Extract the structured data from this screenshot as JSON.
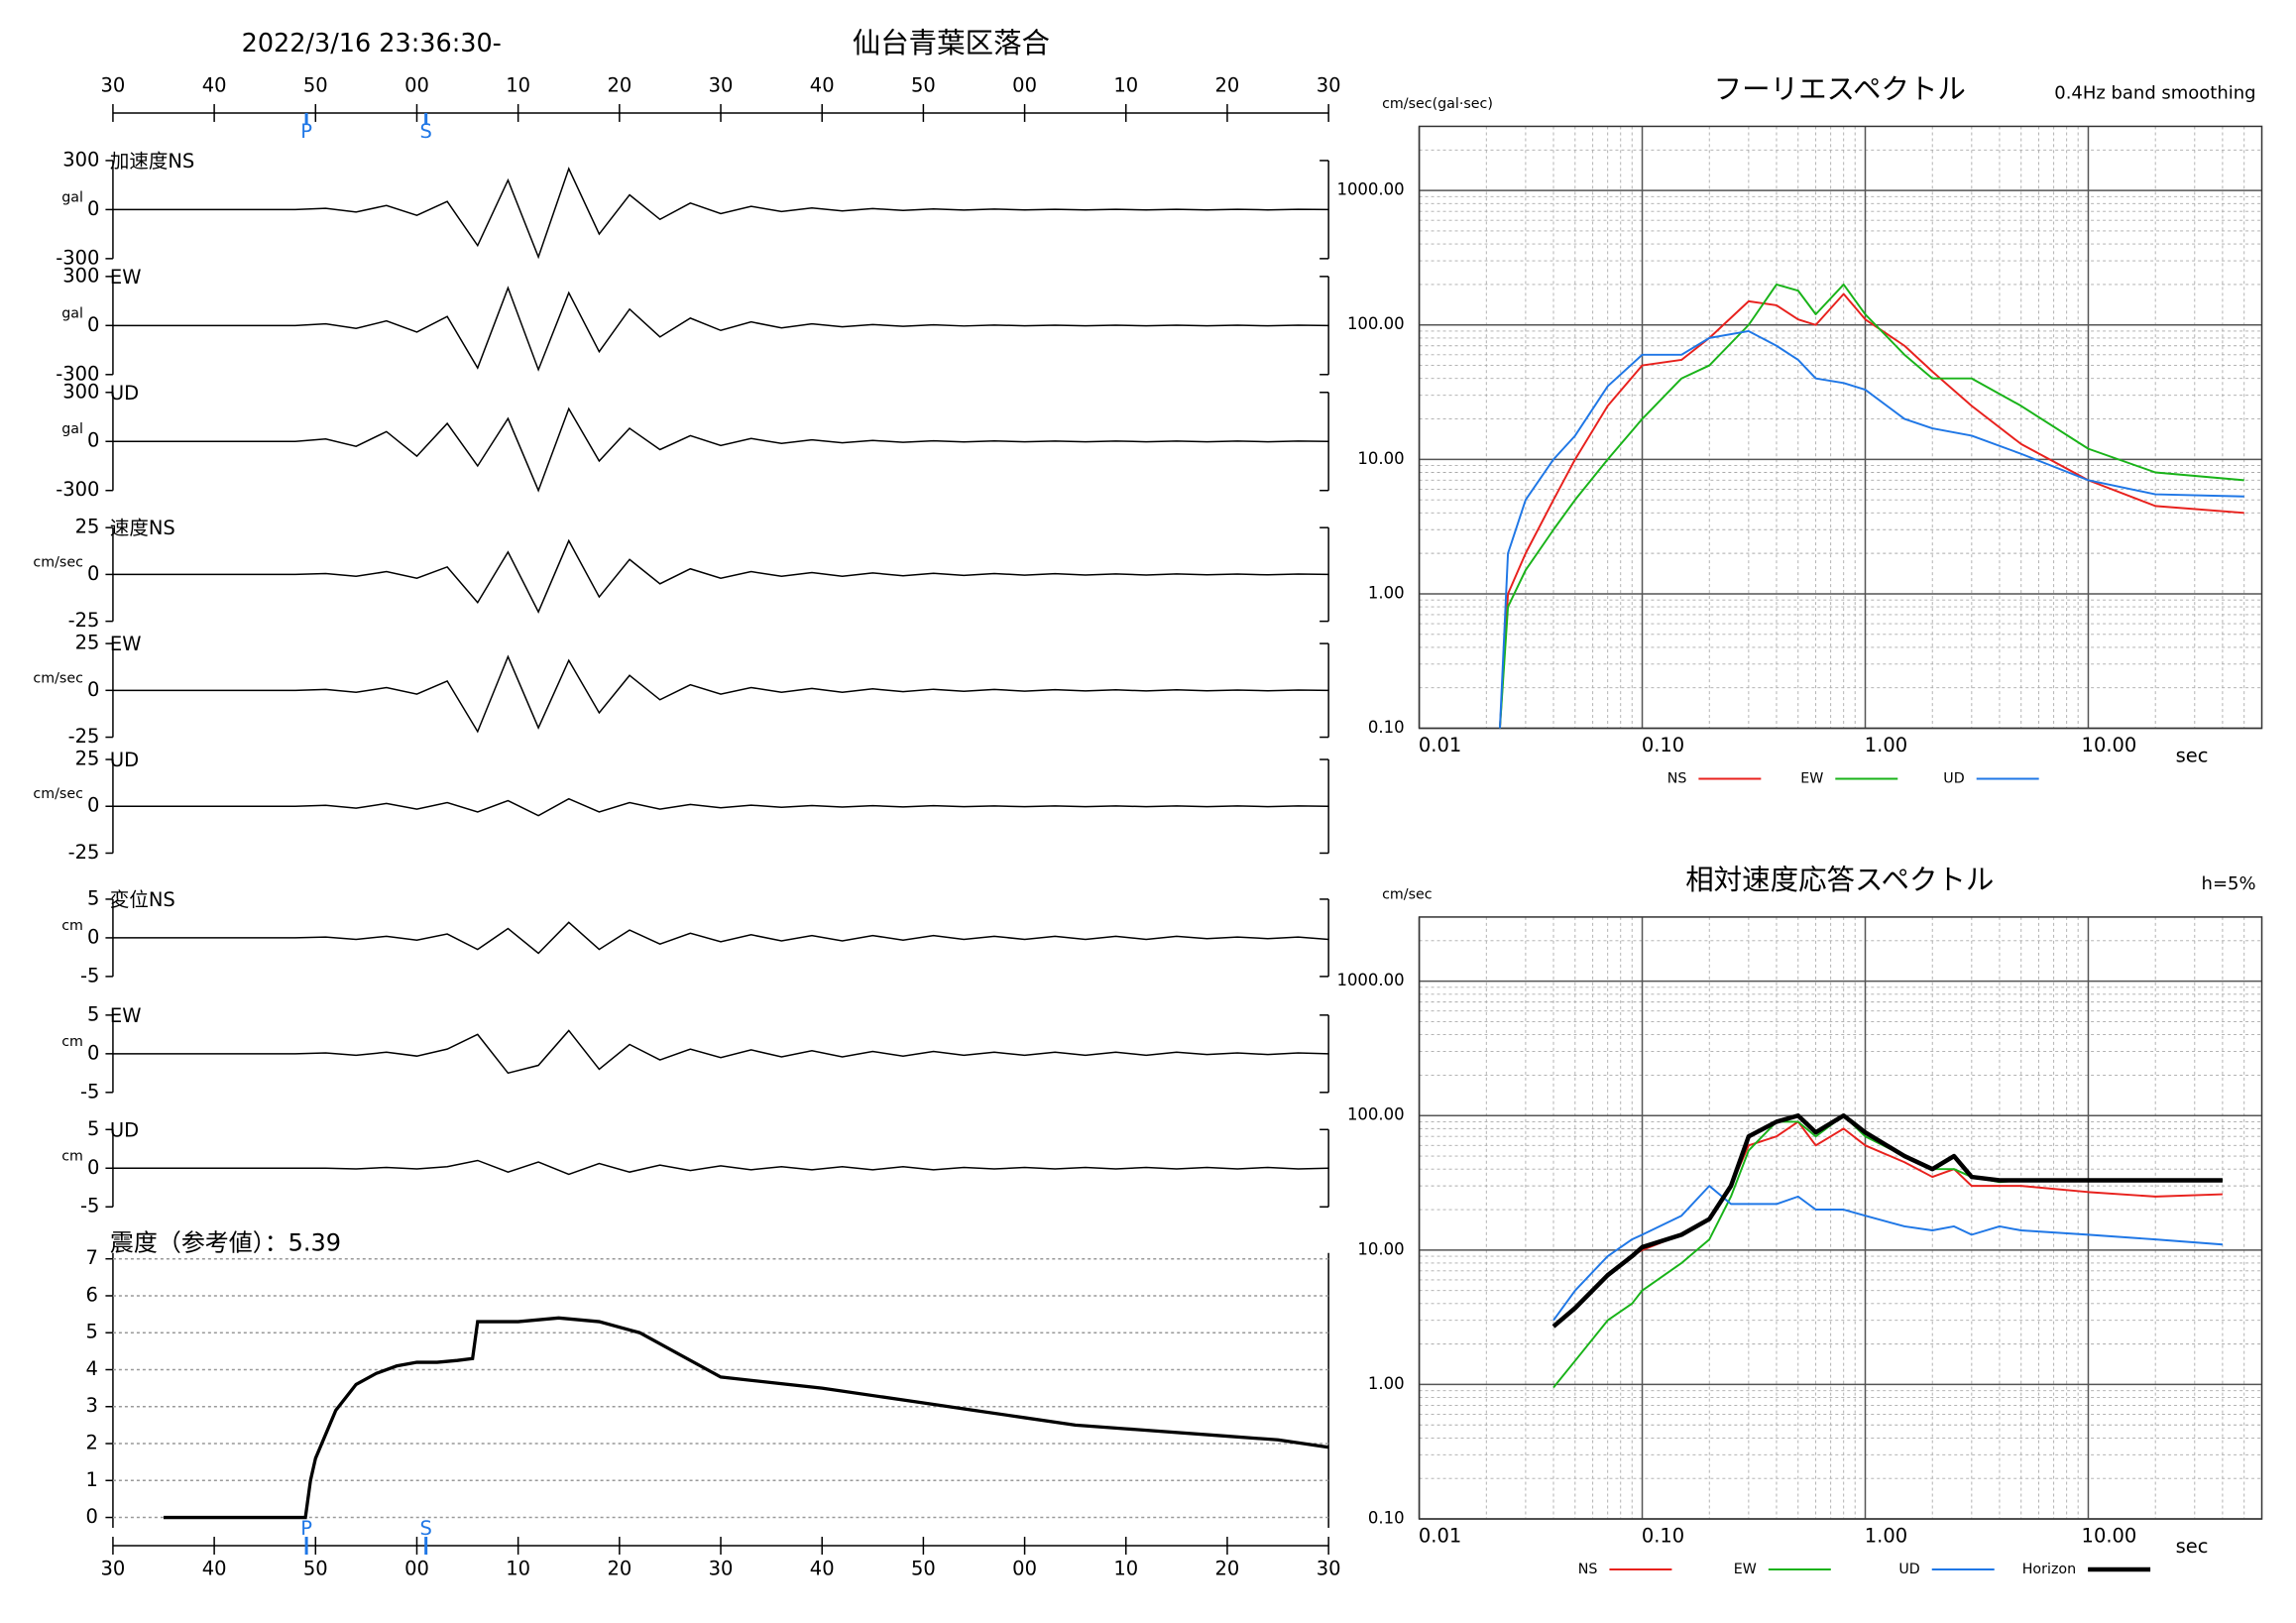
{
  "header": {
    "datetime": "2022/3/16 23:36:30-",
    "station": "仙台青葉区落合"
  },
  "chart_data": [
    {
      "type": "waveform",
      "xlim": [
        0,
        120
      ],
      "xticks": [
        {
          "value": 0,
          "label": "30"
        },
        {
          "value": 10,
          "label": "40"
        },
        {
          "value": 20,
          "label": "50"
        },
        {
          "value": 30,
          "label": "00"
        },
        {
          "value": 40,
          "label": "10"
        },
        {
          "value": 50,
          "label": "20"
        },
        {
          "value": 60,
          "label": "30"
        },
        {
          "value": 70,
          "label": "40"
        },
        {
          "value": 80,
          "label": "50"
        },
        {
          "value": 90,
          "label": "00"
        },
        {
          "value": 100,
          "label": "10"
        },
        {
          "value": 110,
          "label": "20"
        },
        {
          "value": 120,
          "label": "30"
        }
      ],
      "markers": [
        {
          "label": "P",
          "value": 19.1
        },
        {
          "label": "S",
          "value": 30.9
        }
      ],
      "marker_color": "#1f77e6",
      "x": [
        0,
        3,
        6,
        9,
        12,
        15,
        18,
        21,
        24,
        27,
        30,
        33,
        36,
        39,
        42,
        45,
        48,
        51,
        54,
        57,
        60,
        63,
        66,
        69,
        72,
        75,
        78,
        81,
        84,
        87,
        90,
        93,
        96,
        99,
        102,
        105,
        108,
        111,
        114,
        117,
        120
      ],
      "series": [
        {
          "name": "加速度NS",
          "unit": "gal",
          "color": "#000000",
          "ylim": [
            -300,
            300
          ],
          "yticks": [
            300,
            0,
            -300
          ],
          "values": [
            0,
            0,
            0,
            0,
            0,
            0,
            0,
            8,
            -15,
            25,
            -35,
            50,
            -220,
            180,
            -290,
            250,
            -150,
            90,
            -60,
            40,
            -25,
            20,
            -12,
            10,
            -8,
            6,
            -5,
            4,
            -3,
            3,
            -2,
            2,
            -2,
            2,
            -2,
            2,
            -2,
            2,
            -2,
            2,
            0
          ]
        },
        {
          "name": "EW",
          "unit": "gal",
          "color": "#000000",
          "ylim": [
            -300,
            300
          ],
          "yticks": [
            300,
            0,
            -300
          ],
          "values": [
            0,
            0,
            0,
            0,
            0,
            0,
            0,
            10,
            -18,
            28,
            -40,
            55,
            -260,
            230,
            -270,
            200,
            -160,
            100,
            -70,
            45,
            -30,
            22,
            -15,
            10,
            -8,
            6,
            -5,
            4,
            -3,
            3,
            -2,
            2,
            -2,
            2,
            -2,
            2,
            -2,
            2,
            -2,
            2,
            0
          ]
        },
        {
          "name": "UD",
          "unit": "gal",
          "color": "#000000",
          "ylim": [
            -300,
            300
          ],
          "yticks": [
            300,
            0,
            -300
          ],
          "values": [
            0,
            0,
            0,
            0,
            0,
            0,
            0,
            15,
            -30,
            60,
            -90,
            110,
            -150,
            140,
            -300,
            200,
            -120,
            80,
            -50,
            35,
            -25,
            18,
            -12,
            10,
            -8,
            6,
            -5,
            4,
            -3,
            3,
            -2,
            2,
            -2,
            2,
            -2,
            2,
            -2,
            2,
            -2,
            2,
            0
          ]
        },
        {
          "name": "速度NS",
          "unit": "cm/sec",
          "color": "#000000",
          "ylim": [
            -25,
            25
          ],
          "yticks": [
            25,
            0,
            -25
          ],
          "values": [
            0,
            0,
            0,
            0,
            0,
            0,
            0,
            0.5,
            -1,
            1.5,
            -2,
            4,
            -15,
            12,
            -20,
            18,
            -12,
            8,
            -5,
            3,
            -2,
            1.5,
            -1,
            1,
            -1,
            0.8,
            -0.7,
            0.6,
            -0.5,
            0.5,
            -0.4,
            0.4,
            -0.3,
            0.3,
            -0.3,
            0.3,
            -0.2,
            0.2,
            -0.2,
            0.2,
            0
          ]
        },
        {
          "name": "EW",
          "unit": "cm/sec",
          "color": "#000000",
          "ylim": [
            -25,
            25
          ],
          "yticks": [
            25,
            0,
            -25
          ],
          "values": [
            0,
            0,
            0,
            0,
            0,
            0,
            0,
            0.5,
            -1,
            1.5,
            -2,
            5,
            -22,
            18,
            -20,
            16,
            -12,
            8,
            -5,
            3,
            -2,
            1.5,
            -1,
            1,
            -1,
            0.8,
            -0.7,
            0.6,
            -0.5,
            0.5,
            -0.4,
            0.4,
            -0.3,
            0.3,
            -0.3,
            0.3,
            -0.2,
            0.2,
            -0.2,
            0.2,
            0
          ]
        },
        {
          "name": "UD",
          "unit": "cm/sec",
          "color": "#000000",
          "ylim": [
            -25,
            25
          ],
          "yticks": [
            25,
            0,
            -25
          ],
          "values": [
            0,
            0,
            0,
            0,
            0,
            0,
            0,
            0.5,
            -1,
            1.5,
            -1.5,
            2,
            -3,
            3,
            -5,
            4,
            -3,
            2,
            -1.5,
            1,
            -0.8,
            0.6,
            -0.5,
            0.4,
            -0.4,
            0.3,
            -0.3,
            0.3,
            -0.2,
            0.2,
            -0.2,
            0.2,
            -0.2,
            0.2,
            -0.2,
            0.2,
            -0.2,
            0.2,
            -0.2,
            0.2,
            0
          ]
        },
        {
          "name": "変位NS",
          "unit": "cm",
          "color": "#000000",
          "ylim": [
            -5,
            5
          ],
          "yticks": [
            5,
            0,
            -5
          ],
          "values": [
            0,
            0,
            0,
            0,
            0,
            0,
            0,
            0.1,
            -0.2,
            0.2,
            -0.3,
            0.5,
            -1.5,
            1.2,
            -2,
            2,
            -1.5,
            1,
            -0.8,
            0.6,
            -0.5,
            0.4,
            -0.4,
            0.3,
            -0.4,
            0.3,
            -0.3,
            0.3,
            -0.2,
            0.2,
            -0.2,
            0.2,
            -0.2,
            0.2,
            -0.2,
            0.2,
            -0.1,
            0.1,
            -0.1,
            0.1,
            -0.2
          ]
        },
        {
          "name": "EW",
          "unit": "cm",
          "color": "#000000",
          "ylim": [
            -5,
            5
          ],
          "yticks": [
            5,
            0,
            -5
          ],
          "values": [
            0,
            0,
            0,
            0,
            0,
            0,
            0,
            0.1,
            -0.2,
            0.2,
            -0.3,
            0.6,
            2.5,
            -2.5,
            -1.5,
            3,
            -2,
            1.2,
            -0.8,
            0.6,
            -0.5,
            0.5,
            -0.4,
            0.4,
            -0.4,
            0.3,
            -0.3,
            0.3,
            -0.2,
            0.2,
            -0.2,
            0.2,
            -0.2,
            0.2,
            -0.2,
            0.2,
            -0.1,
            0.1,
            -0.1,
            0.1,
            0
          ]
        },
        {
          "name": "UD",
          "unit": "cm",
          "color": "#000000",
          "ylim": [
            -5,
            5
          ],
          "yticks": [
            5,
            0,
            -5
          ],
          "values": [
            0,
            0,
            0,
            0,
            0,
            0,
            0,
            0,
            -0.1,
            0.1,
            -0.1,
            0.2,
            1,
            -0.5,
            0.8,
            -0.8,
            0.6,
            -0.5,
            0.4,
            -0.3,
            0.3,
            -0.2,
            0.2,
            -0.2,
            0.2,
            -0.2,
            0.2,
            -0.2,
            0.1,
            -0.1,
            0.1,
            -0.1,
            0.1,
            -0.1,
            0.1,
            -0.1,
            0.1,
            -0.1,
            0.1,
            -0.1,
            0
          ]
        }
      ]
    },
    {
      "type": "line",
      "title": "震度（参考値）：5.39",
      "color": "#000000",
      "grid": true,
      "ylim": [
        0,
        7
      ],
      "yticks": [
        0,
        1,
        2,
        3,
        4,
        5,
        6,
        7
      ],
      "x": [
        5,
        19,
        19.5,
        20,
        22,
        24,
        26,
        28,
        30,
        32,
        34,
        35.5,
        36,
        40,
        44,
        48,
        52,
        56,
        60,
        70,
        80,
        85,
        90,
        95,
        100,
        110,
        115,
        120
      ],
      "values": [
        0,
        0,
        1,
        1.6,
        2.9,
        3.6,
        3.9,
        4.1,
        4.2,
        4.2,
        4.25,
        4.3,
        5.3,
        5.3,
        5.4,
        5.3,
        5.0,
        4.4,
        3.8,
        3.5,
        3.1,
        2.9,
        2.7,
        2.5,
        2.4,
        2.2,
        2.1,
        1.9
      ]
    },
    {
      "type": "loglog",
      "title": "フーリエスペクトル",
      "subtitle": "0.4Hz band smoothing",
      "y_label": "cm/sec(gal·sec)",
      "x_label": "sec",
      "log_x": true,
      "log_y": true,
      "grid": true,
      "minor_grid": true,
      "xlim": [
        0.01,
        60
      ],
      "ylim": [
        0.1,
        3000
      ],
      "xticks": [
        0.01,
        {
          "value": 0.1,
          "label": "0.10"
        },
        {
          "value": 1,
          "label": "1.00"
        },
        {
          "value": 10,
          "label": "10.00"
        }
      ],
      "yticks": [
        {
          "value": 0.1,
          "label": "0.10"
        },
        {
          "value": 1,
          "label": "1.00"
        },
        {
          "value": 10,
          "label": "10.00"
        },
        {
          "value": 100,
          "label": "100.00"
        },
        {
          "value": 1000,
          "label": "1000.00"
        }
      ],
      "x": [
        0.023,
        0.025,
        0.03,
        0.04,
        0.05,
        0.07,
        0.1,
        0.15,
        0.2,
        0.3,
        0.4,
        0.5,
        0.6,
        0.8,
        1,
        1.5,
        2,
        3,
        5,
        10,
        20,
        50
      ],
      "series": [
        {
          "name": "NS",
          "color": "#e8211d",
          "values": [
            0.1,
            1,
            2,
            5,
            10,
            25,
            50,
            55,
            80,
            150,
            140,
            110,
            100,
            170,
            110,
            70,
            45,
            25,
            13,
            7,
            4.5,
            4
          ]
        },
        {
          "name": "EW",
          "color": "#19b319",
          "values": [
            0.1,
            0.8,
            1.5,
            3,
            5,
            10,
            20,
            40,
            50,
            100,
            200,
            180,
            120,
            200,
            120,
            60,
            40,
            40,
            25,
            12,
            8,
            7
          ]
        },
        {
          "name": "UD",
          "color": "#1f77e6",
          "values": [
            0.1,
            2,
            5,
            10,
            15,
            35,
            60,
            60,
            80,
            90,
            70,
            55,
            40,
            37,
            33,
            20,
            17,
            15,
            11,
            7,
            5.5,
            5.3
          ]
        }
      ]
    },
    {
      "type": "loglog",
      "title": "相対速度応答スペクトル",
      "subtitle": "h=5%",
      "y_label": "cm/sec",
      "x_label": "sec",
      "log_x": true,
      "log_y": true,
      "grid": true,
      "minor_grid": true,
      "xlim": [
        0.01,
        60
      ],
      "ylim": [
        0.1,
        3000
      ],
      "xticks": [
        0.01,
        {
          "value": 0.1,
          "label": "0.10"
        },
        {
          "value": 1,
          "label": "1.00"
        },
        {
          "value": 10,
          "label": "10.00"
        }
      ],
      "yticks": [
        {
          "value": 0.1,
          "label": "0.10"
        },
        {
          "value": 1,
          "label": "1.00"
        },
        {
          "value": 10,
          "label": "10.00"
        },
        {
          "value": 100,
          "label": "100.00"
        },
        {
          "value": 1000,
          "label": "1000.00"
        }
      ],
      "x": [
        0.04,
        0.05,
        0.07,
        0.09,
        0.1,
        0.15,
        0.2,
        0.25,
        0.3,
        0.4,
        0.5,
        0.6,
        0.8,
        1,
        1.5,
        2,
        2.5,
        3,
        4,
        5,
        10,
        20,
        40
      ],
      "series": [
        {
          "name": "NS",
          "color": "#e8211d",
          "values": [
            2.7,
            3.7,
            6.5,
            9,
            10,
            13,
            17,
            30,
            60,
            70,
            90,
            60,
            80,
            60,
            45,
            35,
            40,
            30,
            30,
            30,
            27,
            25,
            26
          ]
        },
        {
          "name": "EW",
          "color": "#19b319",
          "values": [
            0.95,
            1.5,
            3,
            4,
            5,
            8,
            12,
            25,
            55,
            90,
            90,
            70,
            100,
            70,
            50,
            40,
            40,
            35,
            32,
            33,
            33,
            33,
            33
          ]
        },
        {
          "name": "UD",
          "color": "#1f77e6",
          "values": [
            3,
            5,
            9,
            12,
            13,
            18,
            30,
            22,
            22,
            22,
            25,
            20,
            20,
            18,
            15,
            14,
            15,
            13,
            15,
            14,
            13,
            12,
            11
          ]
        },
        {
          "name": "Horizon",
          "color": "#000000",
          "line_width": 3,
          "values": [
            2.7,
            3.7,
            6.5,
            9,
            10.5,
            13,
            17,
            30,
            70,
            90,
            100,
            75,
            100,
            75,
            50,
            40,
            50,
            35,
            33,
            33,
            33,
            33,
            33
          ]
        }
      ]
    }
  ]
}
